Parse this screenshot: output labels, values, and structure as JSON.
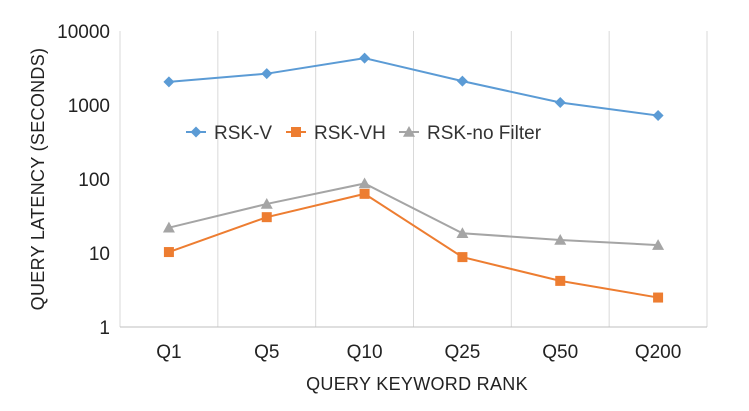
{
  "chart_data": {
    "type": "line",
    "title": "",
    "xlabel": "QUERY KEYWORD RANK",
    "ylabel": "QUERY LATENCY (SECONDS)",
    "yscale": "log",
    "ylim": [
      1,
      10000
    ],
    "y_ticks": [
      1,
      10,
      100,
      1000,
      10000
    ],
    "y_tick_labels": [
      "1",
      "10",
      "100",
      "1000",
      "10000"
    ],
    "categories": [
      "Q1",
      "Q5",
      "Q10",
      "Q25",
      "Q50",
      "Q200"
    ],
    "grid": "vertical",
    "legend_position": "inside-top-center",
    "series": [
      {
        "name": "RSK-V",
        "color": "#5b9bd5",
        "marker": "diamond",
        "values": [
          2050,
          2650,
          4300,
          2100,
          1080,
          720
        ]
      },
      {
        "name": "RSK-VH",
        "color": "#ed7d31",
        "marker": "square",
        "values": [
          10.3,
          30.5,
          63,
          8.8,
          4.2,
          2.5
        ]
      },
      {
        "name": "RSK-no Filter",
        "color": "#a5a5a5",
        "marker": "triangle",
        "values": [
          22,
          46,
          87,
          18.5,
          15,
          12.8
        ]
      }
    ]
  }
}
